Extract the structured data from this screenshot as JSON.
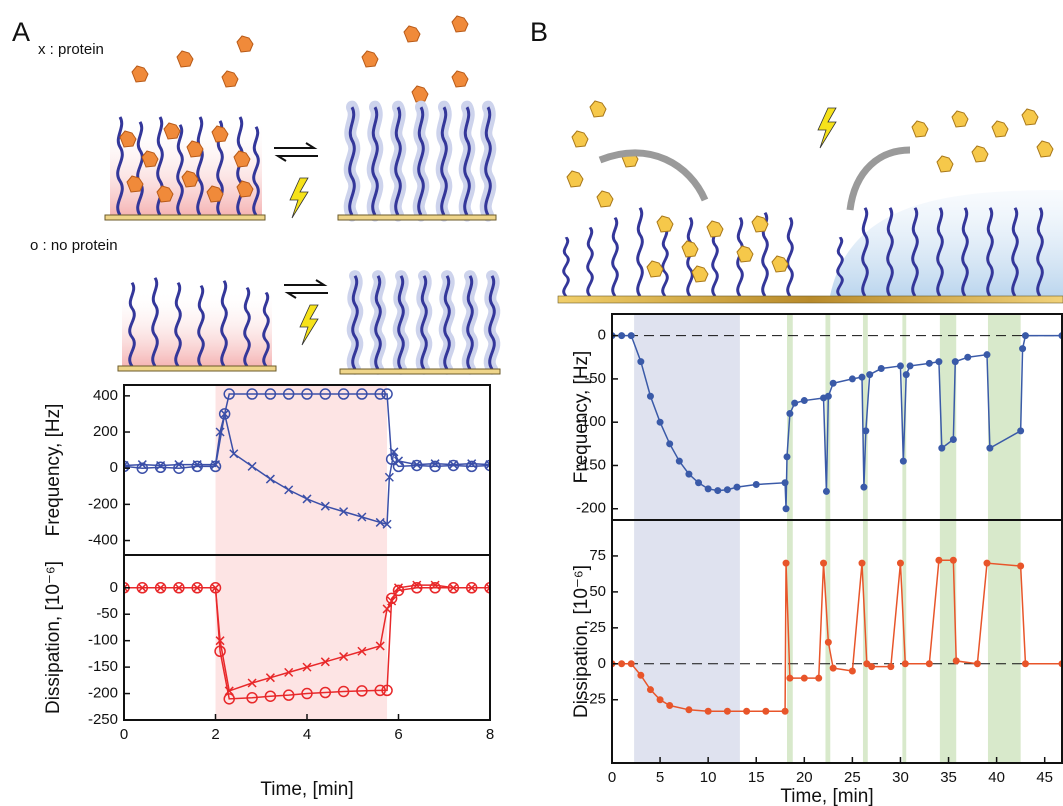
{
  "labels": [
    "A",
    "B"
  ],
  "legend": [
    "x :  protein",
    "o : no protein"
  ],
  "chart_data": [
    {
      "type": "line",
      "y_label": "Frequency, [Hz]",
      "xlim": [
        0,
        8
      ],
      "ylim": [
        -480,
        460
      ],
      "yticks": [
        400,
        200,
        0,
        -200,
        -400
      ],
      "shaded_regions": [
        {
          "x": [
            2,
            5.75
          ],
          "color": "#fde4e4"
        }
      ],
      "series": [
        {
          "color": "#3b4fa8",
          "marker": "x",
          "x": [
            0,
            0.4,
            0.8,
            1.2,
            1.6,
            2,
            2.1,
            2.2,
            2.4,
            2.8,
            3.2,
            3.6,
            4,
            4.4,
            4.8,
            5.2,
            5.6,
            5.75,
            5.8,
            5.9,
            6,
            6.4,
            6.8,
            7.2,
            7.6,
            8
          ],
          "values": [
            15,
            20,
            15,
            20,
            20,
            20,
            200,
            300,
            80,
            10,
            -60,
            -120,
            -170,
            -210,
            -240,
            -270,
            -300,
            -310,
            -50,
            90,
            40,
            20,
            25,
            20,
            25,
            20
          ]
        },
        {
          "color": "#3b4fa8",
          "marker": "o",
          "x": [
            0,
            0.4,
            0.8,
            1.2,
            1.6,
            2,
            2.2,
            2.3,
            2.8,
            3.2,
            3.6,
            4,
            4.4,
            4.8,
            5.2,
            5.6,
            5.75,
            5.85,
            6,
            6.4,
            6.8,
            7.2,
            7.6,
            8
          ],
          "values": [
            10,
            0,
            5,
            0,
            10,
            10,
            300,
            410,
            410,
            410,
            410,
            410,
            410,
            410,
            410,
            410,
            410,
            50,
            10,
            15,
            10,
            15,
            10,
            15
          ]
        }
      ]
    },
    {
      "type": "line",
      "y_label": "Dissipation, [10⁻⁶]",
      "x_label": "Time, [min]",
      "xlim": [
        0,
        8
      ],
      "ylim": [
        -250,
        62
      ],
      "xticks": [
        0,
        2,
        4,
        6,
        8
      ],
      "yticks": [
        0,
        -50,
        -100,
        -150,
        -200,
        -250
      ],
      "shaded_regions": [
        {
          "x": [
            2,
            5.75
          ],
          "color": "#fde4e4"
        }
      ],
      "series": [
        {
          "color": "#e8282a",
          "marker": "x",
          "x": [
            0,
            0.4,
            0.8,
            1.2,
            1.6,
            2,
            2.1,
            2.3,
            2.8,
            3.2,
            3.6,
            4,
            4.4,
            4.8,
            5.2,
            5.6,
            5.75,
            5.85,
            6,
            6.4,
            6.8,
            7.2,
            7.6,
            8
          ],
          "values": [
            0,
            0,
            0,
            0,
            0,
            0,
            -100,
            -195,
            -180,
            -170,
            -160,
            -150,
            -140,
            -130,
            -120,
            -110,
            -40,
            -25,
            0,
            5,
            5,
            0,
            0,
            0
          ]
        },
        {
          "color": "#e8282a",
          "marker": "o",
          "x": [
            0,
            0.4,
            0.8,
            1.2,
            1.6,
            2,
            2.1,
            2.3,
            2.8,
            3.2,
            3.6,
            4,
            4.4,
            4.8,
            5.2,
            5.6,
            5.75,
            5.85,
            6,
            6.4,
            6.8,
            7.2,
            7.6,
            8
          ],
          "values": [
            0,
            0,
            0,
            0,
            0,
            0,
            -120,
            -210,
            -208,
            -205,
            -203,
            -200,
            -198,
            -196,
            -195,
            -194,
            -194,
            -20,
            -5,
            0,
            0,
            0,
            0,
            0
          ]
        }
      ]
    },
    {
      "type": "line",
      "y_label": "Frequency, [Hz]",
      "xlim": [
        0,
        46.8
      ],
      "ylim": [
        -213,
        25
      ],
      "yticks": [
        0,
        -50,
        -100,
        -150,
        -200
      ],
      "reference_line": 0,
      "shaded_regions": [
        {
          "x": [
            2.3,
            13.3
          ],
          "color": "#dfe2ef"
        },
        {
          "x": [
            18.2,
            18.8
          ],
          "color": "#d8e9cb"
        },
        {
          "x": [
            22.2,
            22.7
          ],
          "color": "#d8e9cb"
        },
        {
          "x": [
            26.1,
            26.6
          ],
          "color": "#d8e9cb"
        },
        {
          "x": [
            30.2,
            30.6
          ],
          "color": "#d8e9cb"
        },
        {
          "x": [
            34.1,
            35.8
          ],
          "color": "#d8e9cb"
        },
        {
          "x": [
            39.1,
            42.5
          ],
          "color": "#d8e9cb"
        }
      ],
      "series": [
        {
          "color": "#3a5aa8",
          "marker": "filled-circle",
          "x": [
            0,
            1,
            2,
            3,
            4,
            5,
            6,
            7,
            8,
            9,
            10,
            11,
            12,
            13,
            15,
            18,
            18.1,
            18.2,
            18.5,
            19,
            20,
            22,
            22.3,
            22.5,
            23,
            25,
            26,
            26.2,
            26.4,
            26.8,
            28,
            30,
            30.3,
            30.6,
            31,
            33,
            34,
            34.3,
            35.5,
            35.7,
            37,
            39,
            39.3,
            42.5,
            42.7,
            43,
            46.8
          ],
          "values": [
            0,
            0,
            0,
            -30,
            -70,
            -100,
            -125,
            -145,
            -160,
            -170,
            -177,
            -179,
            -178,
            -175,
            -172,
            -170,
            -200,
            -140,
            -90,
            -78,
            -75,
            -72,
            -180,
            -70,
            -55,
            -50,
            -48,
            -175,
            -110,
            -45,
            -38,
            -35,
            -145,
            -45,
            -35,
            -32,
            -30,
            -130,
            -120,
            -30,
            -25,
            -22,
            -130,
            -110,
            -15,
            0,
            0
          ]
        }
      ]
    },
    {
      "type": "line",
      "y_label": "Dissipation, [10⁻⁶]",
      "x_label": "Time, [min]",
      "xlim": [
        0,
        46.8
      ],
      "ylim": [
        -69,
        100
      ],
      "xticks": [
        0,
        5,
        10,
        15,
        20,
        25,
        30,
        35,
        40,
        45
      ],
      "yticks": [
        75,
        50,
        25,
        0,
        -25
      ],
      "reference_line": 0,
      "shaded_regions": [
        {
          "x": [
            2.3,
            13.3
          ],
          "color": "#dfe2ef"
        },
        {
          "x": [
            18.2,
            18.8
          ],
          "color": "#d8e9cb"
        },
        {
          "x": [
            22.2,
            22.7
          ],
          "color": "#d8e9cb"
        },
        {
          "x": [
            26.1,
            26.6
          ],
          "color": "#d8e9cb"
        },
        {
          "x": [
            30.2,
            30.6
          ],
          "color": "#d8e9cb"
        },
        {
          "x": [
            34.1,
            35.8
          ],
          "color": "#d8e9cb"
        },
        {
          "x": [
            39.1,
            42.5
          ],
          "color": "#d8e9cb"
        }
      ],
      "series": [
        {
          "color": "#e8552a",
          "marker": "filled-circle",
          "x": [
            0,
            1,
            2,
            3,
            4,
            5,
            6,
            8,
            10,
            12,
            14,
            16,
            18,
            18.1,
            18.5,
            20,
            21.5,
            22,
            22.5,
            23,
            25,
            26,
            26.5,
            27,
            29,
            30,
            30.5,
            33,
            34,
            35.5,
            35.8,
            38,
            39,
            42.5,
            43,
            46.8
          ],
          "values": [
            0,
            0,
            0,
            -8,
            -18,
            -25,
            -29,
            -32,
            -33,
            -33,
            -33,
            -33,
            -33,
            70,
            -10,
            -10,
            -10,
            70,
            15,
            -3,
            -5,
            70,
            0,
            -2,
            -2,
            70,
            0,
            0,
            72,
            72,
            2,
            0,
            70,
            68,
            0,
            0
          ]
        }
      ]
    }
  ]
}
